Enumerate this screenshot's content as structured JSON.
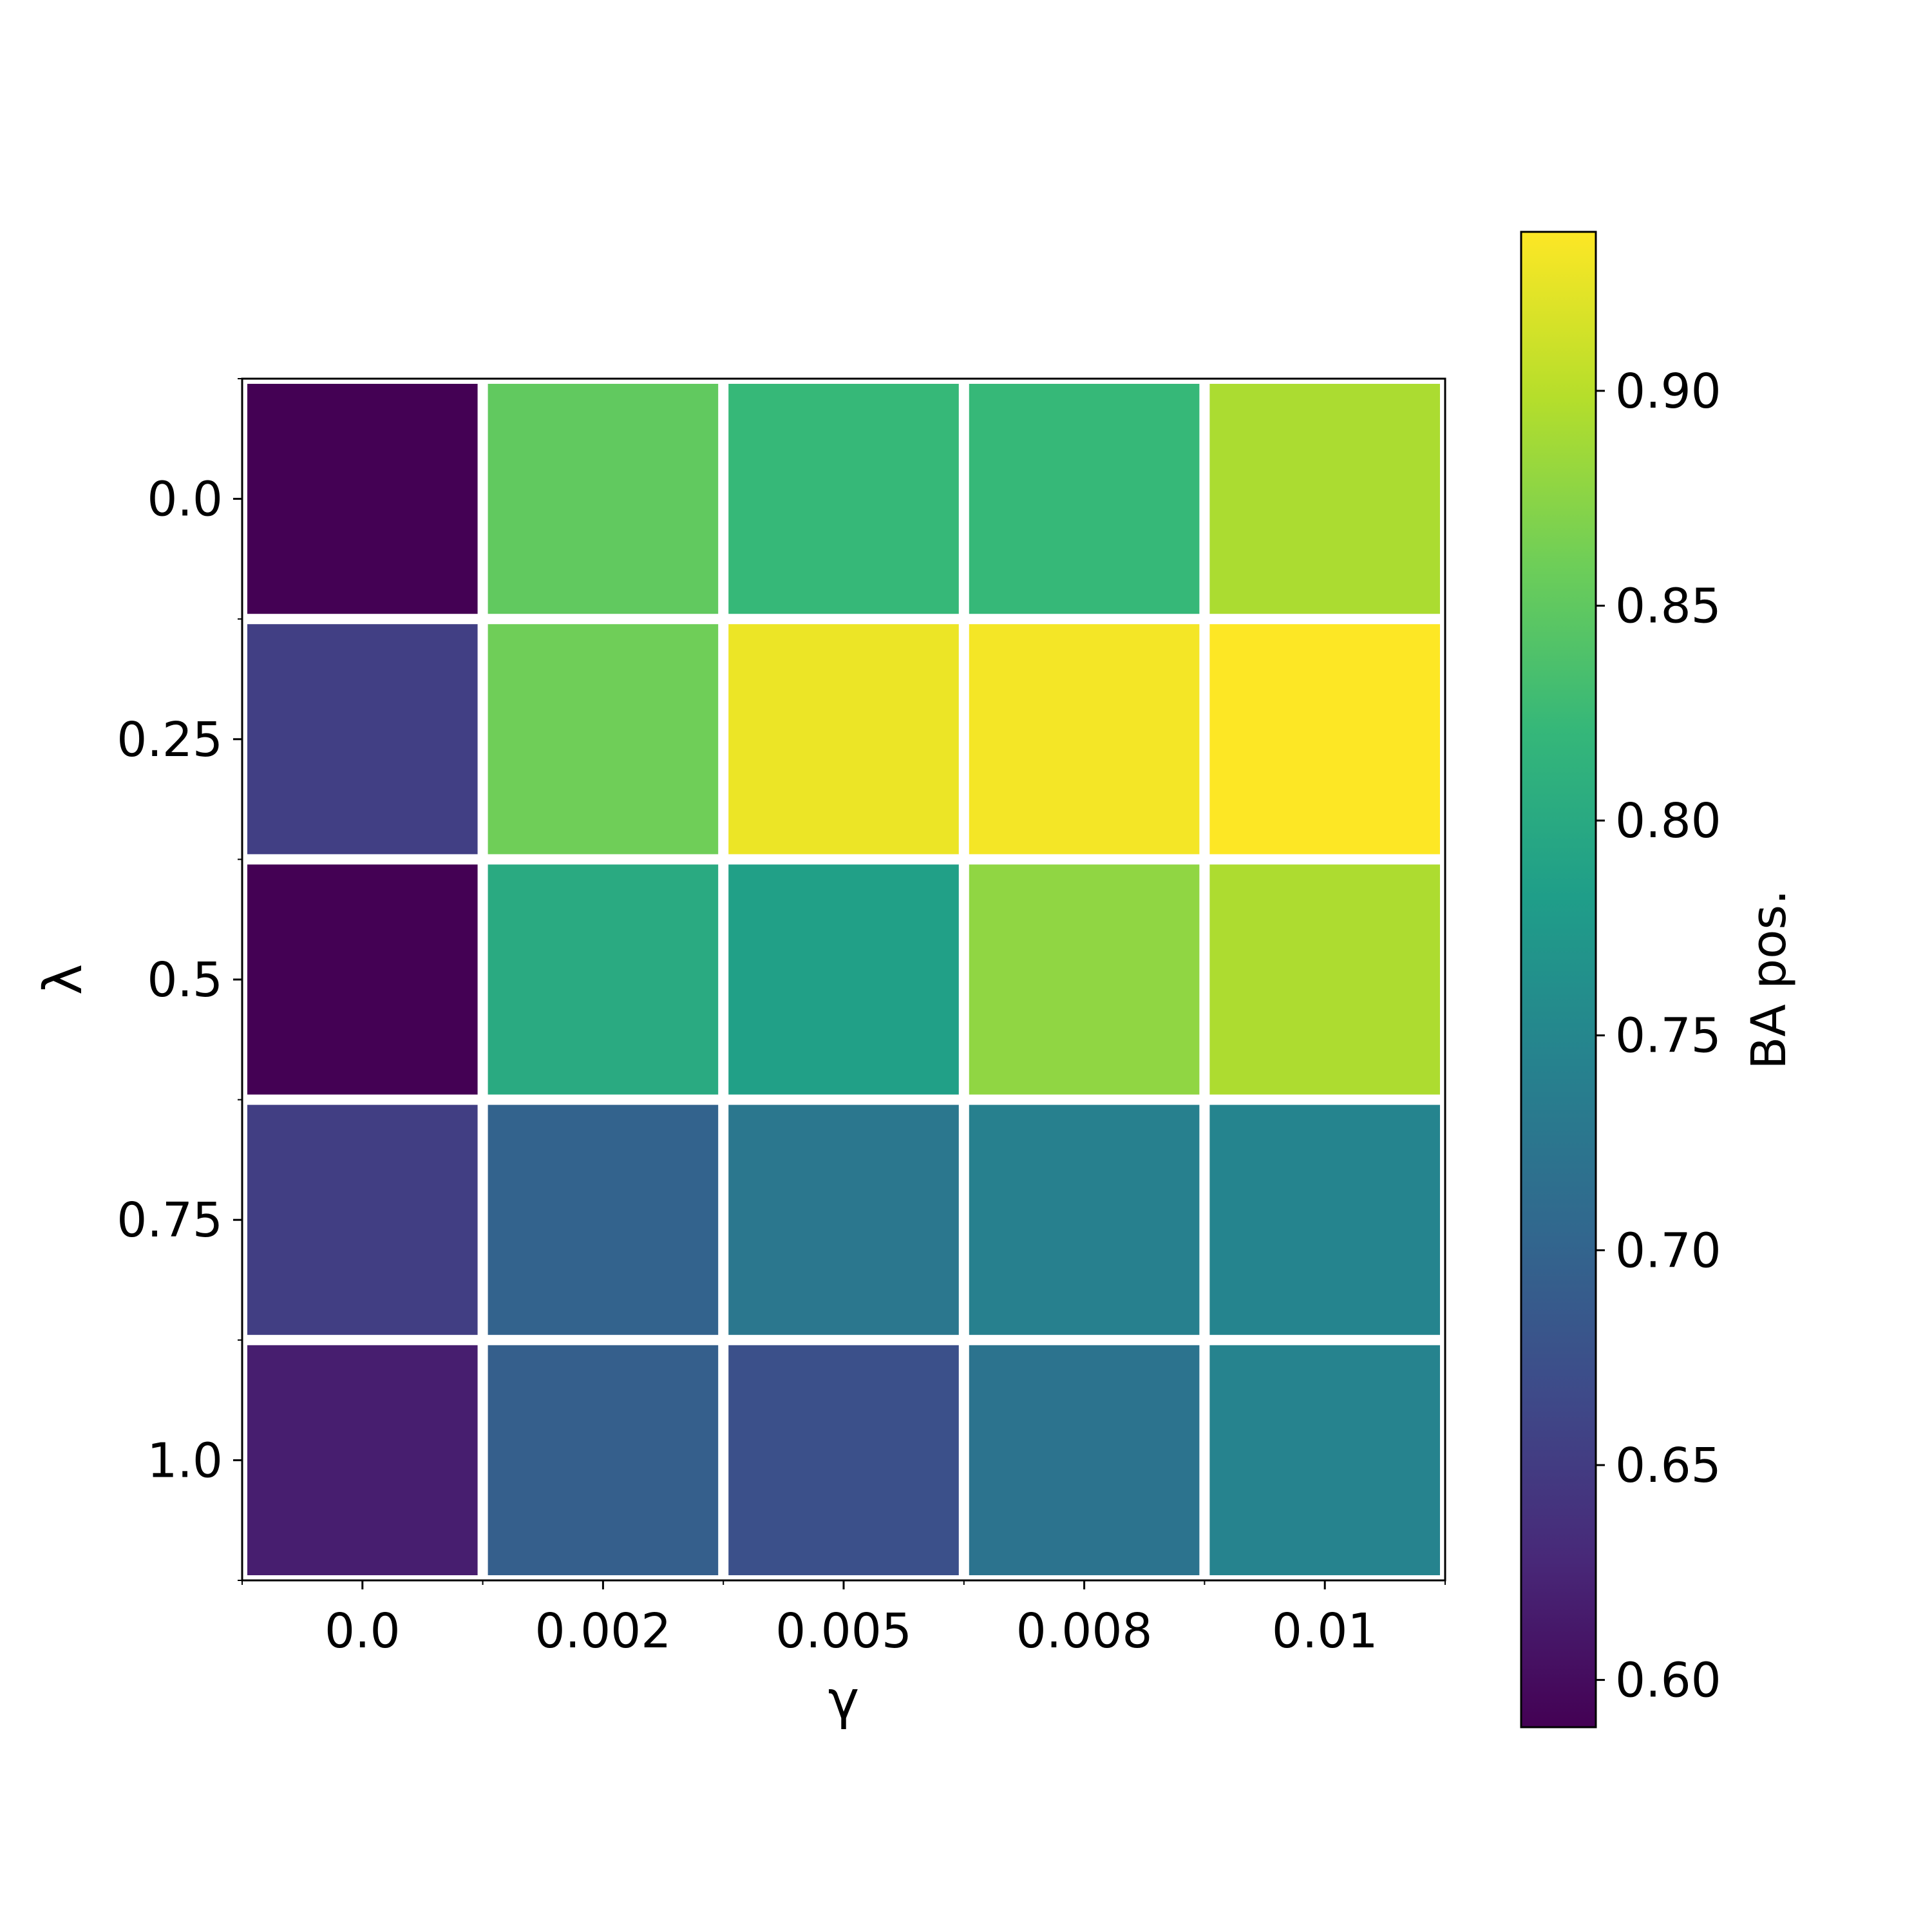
{
  "chart_data": {
    "type": "heatmap",
    "xlabel": "γ",
    "ylabel": "λ",
    "x_categories": [
      "0.0",
      "0.002",
      "0.005",
      "0.008",
      "0.01"
    ],
    "y_categories": [
      "0.0",
      "0.25",
      "0.5",
      "0.75",
      "1.0"
    ],
    "values": [
      [
        0.589,
        0.851,
        0.822,
        0.822,
        0.893
      ],
      [
        0.654,
        0.86,
        0.928,
        0.932,
        0.937
      ],
      [
        0.589,
        0.801,
        0.786,
        0.878,
        0.894
      ],
      [
        0.653,
        0.698,
        0.727,
        0.741,
        0.747
      ],
      [
        0.618,
        0.693,
        0.674,
        0.721,
        0.745
      ]
    ],
    "colormap": "viridis",
    "cell_border_color": "#ffffff",
    "colorbar": {
      "label": "BA pos.",
      "range": [
        0.589,
        0.937
      ],
      "ticks": [
        0.6,
        0.65,
        0.7,
        0.75,
        0.8,
        0.85,
        0.9
      ],
      "tick_labels": [
        "0.60",
        "0.65",
        "0.70",
        "0.75",
        "0.80",
        "0.85",
        "0.90"
      ],
      "position": "right"
    }
  }
}
